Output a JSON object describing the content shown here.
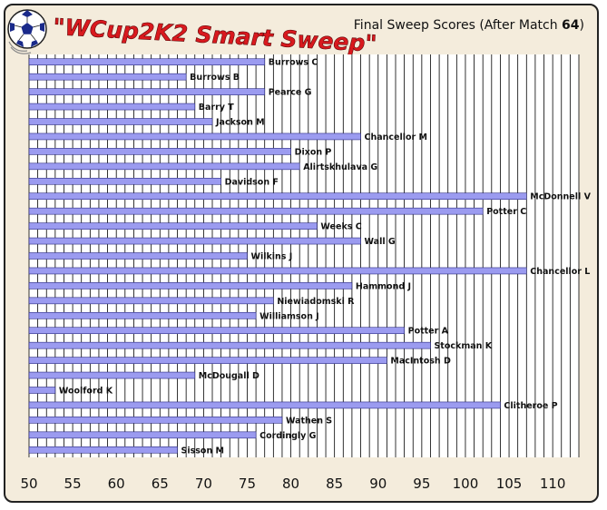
{
  "header": {
    "logo_title": "\"WCup2K2 Smart Sweep\"",
    "subtitle_prefix": "Final Sweep Scores  (After Match ",
    "subtitle_match": "64",
    "subtitle_suffix": ")"
  },
  "colors": {
    "background": "#f4ecdc",
    "bar_fill": "#9b9bf0",
    "bar_stroke": "#2a2a80",
    "grid": "#000000"
  },
  "chart_data": {
    "type": "bar",
    "orientation": "horizontal",
    "title": "Final Sweep Scores (After Match 64)",
    "xlabel": "",
    "ylabel": "",
    "xlim": [
      50,
      113
    ],
    "xticks": [
      50,
      55,
      60,
      65,
      70,
      75,
      80,
      85,
      90,
      95,
      100,
      105,
      110
    ],
    "grid": "vertical lines every 1 unit",
    "legend": "none",
    "bar_labels_position": "right of bar end",
    "series": [
      {
        "categories": [
          "Burrows C",
          "Burrows B",
          "Pearce G",
          "Barry T",
          "Jackson M",
          "Chancellor M",
          "Dixon P",
          "Alirtskhulava G",
          "Davidson F",
          "McDonnell V",
          "Potter C",
          "Weeks C",
          "Wall G",
          "Wilkins J",
          "Chancellor L",
          "Hammond J",
          "Niewiadomski R",
          "Williamson J",
          "Potter A",
          "Stockman K",
          "MacIntosh D",
          "McDougall D",
          "Woolford K",
          "Clitheroe P",
          "Wathen S",
          "Cordingly G",
          "Sisson M"
        ],
        "values": [
          77,
          68,
          77,
          69,
          71,
          88,
          80,
          81,
          72,
          107,
          102,
          83,
          88,
          75,
          107,
          87,
          78,
          76,
          93,
          96,
          91,
          69,
          53,
          104,
          79,
          76,
          67
        ]
      }
    ]
  }
}
